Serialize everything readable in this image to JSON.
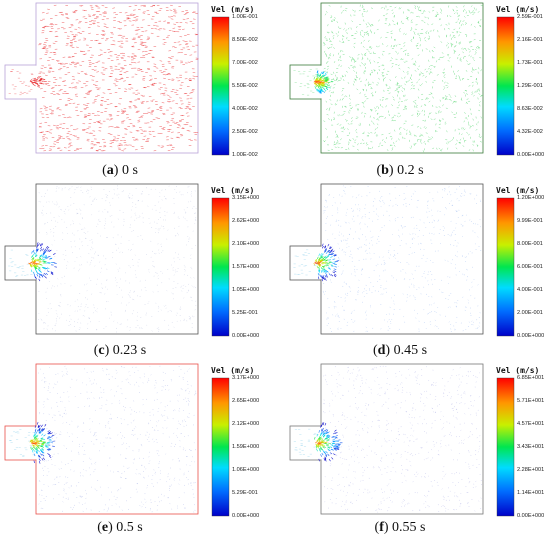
{
  "colorbar_title": "Vel  (m/s)",
  "panels": [
    {
      "id": "a",
      "letter": "a",
      "time": "0 s",
      "ticks": [
        "1.00E-001",
        "8.50E-002",
        "7.00E-002",
        "5.50E-002",
        "4.00E-002",
        "2.50E-002",
        "1.00E-002"
      ],
      "field_color": "#e8262a",
      "border_color": "#b9a3d8"
    },
    {
      "id": "b",
      "letter": "b",
      "time": "0.2 s",
      "ticks": [
        "2.59E-001",
        "2.16E-001",
        "1.73E-001",
        "1.29E-001",
        "8.63E-002",
        "4.32E-002",
        "0.00E+000"
      ],
      "field_color": "#4fd36a",
      "border_color": "#3a7a3a"
    },
    {
      "id": "c",
      "letter": "c",
      "time": "0.23 s",
      "ticks": [
        "3.15E+000",
        "2.62E+000",
        "2.10E+000",
        "1.57E+000",
        "1.05E+000",
        "5.25E-001",
        "0.00E+000"
      ],
      "field_color": "#7a86c0",
      "border_color": "#555555"
    },
    {
      "id": "d",
      "letter": "d",
      "time": "0.45 s",
      "ticks": [
        "1.20E+000",
        "9.99E-001",
        "8.00E-001",
        "6.00E-001",
        "4.00E-001",
        "2.00E-001",
        "0.00E+000"
      ],
      "field_color": "#3d79e0",
      "border_color": "#555555"
    },
    {
      "id": "e",
      "letter": "e",
      "time": "0.5 s",
      "ticks": [
        "3.17E+000",
        "2.65E+000",
        "2.12E+000",
        "1.59E+000",
        "1.06E+000",
        "5.29E-001",
        "0.00E+000"
      ],
      "field_color": "#5a6fd0",
      "border_color": "#e8504a"
    },
    {
      "id": "f",
      "letter": "f",
      "time": "0.55 s",
      "ticks": [
        "6.85E+001",
        "5.71E+001",
        "4.57E+001",
        "3.43E+001",
        "2.28E+001",
        "1.14E+001",
        "0.00E+000"
      ],
      "field_color": "#6a6fd0",
      "border_color": "#777777"
    }
  ]
}
